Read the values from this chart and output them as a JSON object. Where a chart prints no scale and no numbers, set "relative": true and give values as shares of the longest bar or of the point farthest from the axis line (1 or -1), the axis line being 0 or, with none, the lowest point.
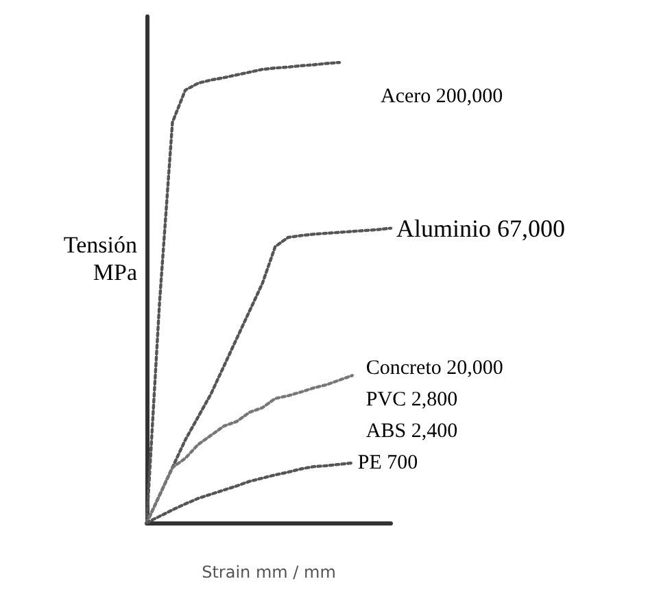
{
  "chart_data": {
    "type": "line",
    "relative": true,
    "xlabel": "Strain mm / mm",
    "ylabel": "Tensión\nMPa",
    "line_style": "dotted",
    "marker": "none",
    "legend": false,
    "grid": false,
    "categories": [
      null,
      null,
      null,
      null,
      null,
      null,
      null,
      null,
      null,
      null,
      null,
      null,
      null,
      null,
      null,
      null,
      null,
      null,
      null,
      null
    ],
    "series": [
      {
        "name": "Acero 200,000",
        "color": "#555555",
        "values": [
          0,
          0.48,
          0.87,
          0.94,
          0.955,
          0.962,
          0.967,
          0.973,
          0.979,
          0.985,
          0.988,
          0.99,
          0.993,
          0.995,
          0.998,
          1,
          null,
          null,
          null,
          null
        ]
      },
      {
        "name": "Aluminio 67,000",
        "color": "#555555",
        "values": [
          0,
          0.06,
          0.12,
          0.18,
          0.23,
          0.28,
          0.34,
          0.4,
          0.46,
          0.52,
          0.6,
          0.62,
          0.624,
          0.627,
          0.629,
          0.631,
          0.633,
          0.635,
          0.637,
          0.64
        ]
      },
      {
        "color": "#777777",
        "values": [
          0,
          0.06,
          0.12,
          0.14,
          0.17,
          0.19,
          0.21,
          0.22,
          0.24,
          0.25,
          0.27,
          0.276,
          0.284,
          0.293,
          0.3,
          0.31,
          0.32,
          null,
          null,
          null
        ]
      },
      {
        "name": "PE 700",
        "color": "#555555",
        "values": [
          0,
          0.014,
          0.028,
          0.041,
          0.053,
          0.062,
          0.071,
          0.08,
          0.09,
          0.097,
          0.104,
          0.11,
          0.117,
          0.122,
          0.124,
          0.127,
          0.13,
          null,
          null,
          null
        ]
      }
    ],
    "annotations": [
      "Concreto 20,000",
      "PVC 2,800",
      "ABS 2,400"
    ]
  }
}
